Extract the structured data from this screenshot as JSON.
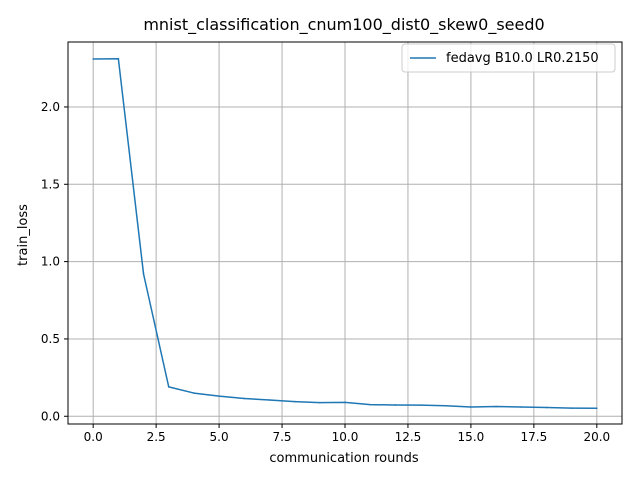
{
  "chart_data": {
    "type": "line",
    "title": "mnist_classification_cnum100_dist0_skew0_seed0",
    "xlabel": "communication rounds",
    "ylabel": "train_loss",
    "xlim": [
      -1.0,
      21.0
    ],
    "ylim": [
      -0.05,
      2.42
    ],
    "xticks": [
      0.0,
      2.5,
      5.0,
      7.5,
      10.0,
      12.5,
      15.0,
      17.5,
      20.0
    ],
    "xtick_labels": [
      "0.0",
      "2.5",
      "5.0",
      "7.5",
      "10.0",
      "12.5",
      "15.0",
      "17.5",
      "20.0"
    ],
    "yticks": [
      0.0,
      0.5,
      1.0,
      1.5,
      2.0
    ],
    "ytick_labels": [
      "0.0",
      "0.5",
      "1.0",
      "1.5",
      "2.0"
    ],
    "grid": true,
    "legend_position": "top-right",
    "series": [
      {
        "name": "fedavg B10.0 LR0.2150",
        "color": "#1f77b4",
        "x": [
          0,
          1,
          2,
          3,
          4,
          5,
          6,
          7,
          8,
          9,
          10,
          11,
          12,
          13,
          14,
          15,
          16,
          17,
          18,
          19,
          20
        ],
        "values": [
          2.31,
          2.312,
          0.92,
          0.19,
          0.15,
          0.13,
          0.115,
          0.105,
          0.095,
          0.088,
          0.09,
          0.075,
          0.073,
          0.072,
          0.068,
          0.06,
          0.063,
          0.06,
          0.057,
          0.053,
          0.052
        ]
      }
    ]
  }
}
